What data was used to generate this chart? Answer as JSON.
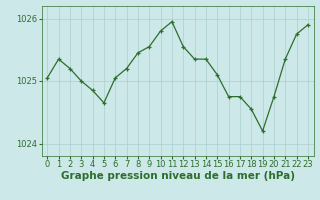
{
  "x": [
    0,
    1,
    2,
    3,
    4,
    5,
    6,
    7,
    8,
    9,
    10,
    11,
    12,
    13,
    14,
    15,
    16,
    17,
    18,
    19,
    20,
    21,
    22,
    23
  ],
  "y": [
    1025.05,
    1025.35,
    1025.2,
    1025.0,
    1024.85,
    1024.65,
    1025.05,
    1025.2,
    1025.45,
    1025.55,
    1025.8,
    1025.95,
    1025.55,
    1025.35,
    1025.35,
    1025.1,
    1024.75,
    1024.75,
    1024.55,
    1024.2,
    1024.75,
    1025.35,
    1025.75,
    1025.9
  ],
  "ylim": [
    1023.8,
    1026.2
  ],
  "yticks": [
    1024,
    1025,
    1026
  ],
  "xticks": [
    0,
    1,
    2,
    3,
    4,
    5,
    6,
    7,
    8,
    9,
    10,
    11,
    12,
    13,
    14,
    15,
    16,
    17,
    18,
    19,
    20,
    21,
    22,
    23
  ],
  "xlabel": "Graphe pression niveau de la mer (hPa)",
  "line_color": "#2d6e2d",
  "marker": "+",
  "marker_size": 3,
  "bg_color": "#cce8e8",
  "grid_color": "#aacfcf",
  "tick_fontsize": 6,
  "label_fontsize": 7.5,
  "label_fontweight": "bold"
}
